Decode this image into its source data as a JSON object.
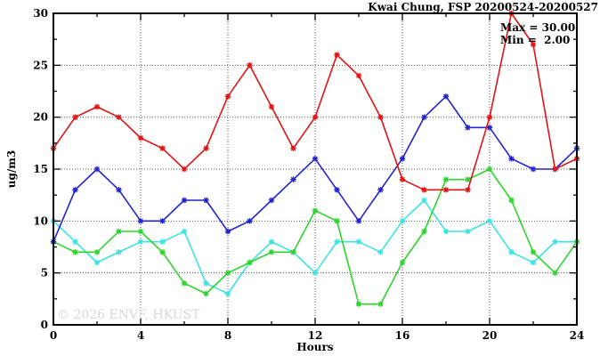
{
  "chart_data": {
    "type": "line",
    "title": "Kwai Chung, FSP 20200524-20200527",
    "xlabel": "Hours",
    "ylabel": "ug/m3",
    "xlim": [
      0,
      24
    ],
    "ylim": [
      0,
      30
    ],
    "x_major_ticks": [
      0,
      4,
      8,
      12,
      16,
      20,
      24
    ],
    "x_minor_ticks": [
      2,
      6,
      10,
      14,
      18,
      22
    ],
    "y_major_ticks": [
      0,
      5,
      10,
      15,
      20,
      25,
      30
    ],
    "y_minor_ticks": [
      2.5,
      7.5,
      12.5,
      17.5,
      22.5,
      27.5
    ],
    "grid": "dotted-at-major-ticks",
    "legend": "none",
    "x": [
      0,
      1,
      2,
      3,
      4,
      5,
      6,
      7,
      8,
      9,
      10,
      11,
      12,
      13,
      14,
      15,
      16,
      17,
      18,
      19,
      20,
      21,
      22,
      23,
      24
    ],
    "series": [
      {
        "name": "series-cyan",
        "color": "#3fe2e2",
        "values": [
          10,
          8,
          6,
          7,
          8,
          8,
          9,
          4,
          3,
          6,
          8,
          7,
          5,
          8,
          8,
          7,
          10,
          12,
          9,
          9,
          10,
          7,
          6,
          8,
          8
        ]
      },
      {
        "name": "series-green",
        "color": "#2ed32e",
        "values": [
          8,
          7,
          7,
          9,
          9,
          7,
          4,
          3,
          5,
          6,
          7,
          7,
          11,
          10,
          2,
          2,
          6,
          9,
          14,
          14,
          15,
          12,
          7,
          5,
          8
        ]
      },
      {
        "name": "series-blue",
        "color": "#2323cc",
        "values": [
          8,
          13,
          15,
          13,
          10,
          10,
          12,
          12,
          9,
          10,
          12,
          14,
          16,
          13,
          10,
          13,
          16,
          20,
          22,
          19,
          19,
          16,
          15,
          15,
          17
        ]
      },
      {
        "name": "series-red",
        "color": "#e01414",
        "values": [
          17,
          20,
          21,
          20,
          18,
          17,
          15,
          17,
          22,
          25,
          21,
          17,
          20,
          26,
          24,
          20,
          14,
          13,
          13,
          13,
          20,
          30,
          27,
          15,
          16
        ]
      }
    ],
    "annotations": {
      "max_label": "Max = 30.00",
      "min_label": "Min =  2.00"
    },
    "watermark": "© 2026 ENVF, HKUST",
    "frame_color": "#000000",
    "gridline_color": "#555555",
    "background": "#ffffff"
  }
}
